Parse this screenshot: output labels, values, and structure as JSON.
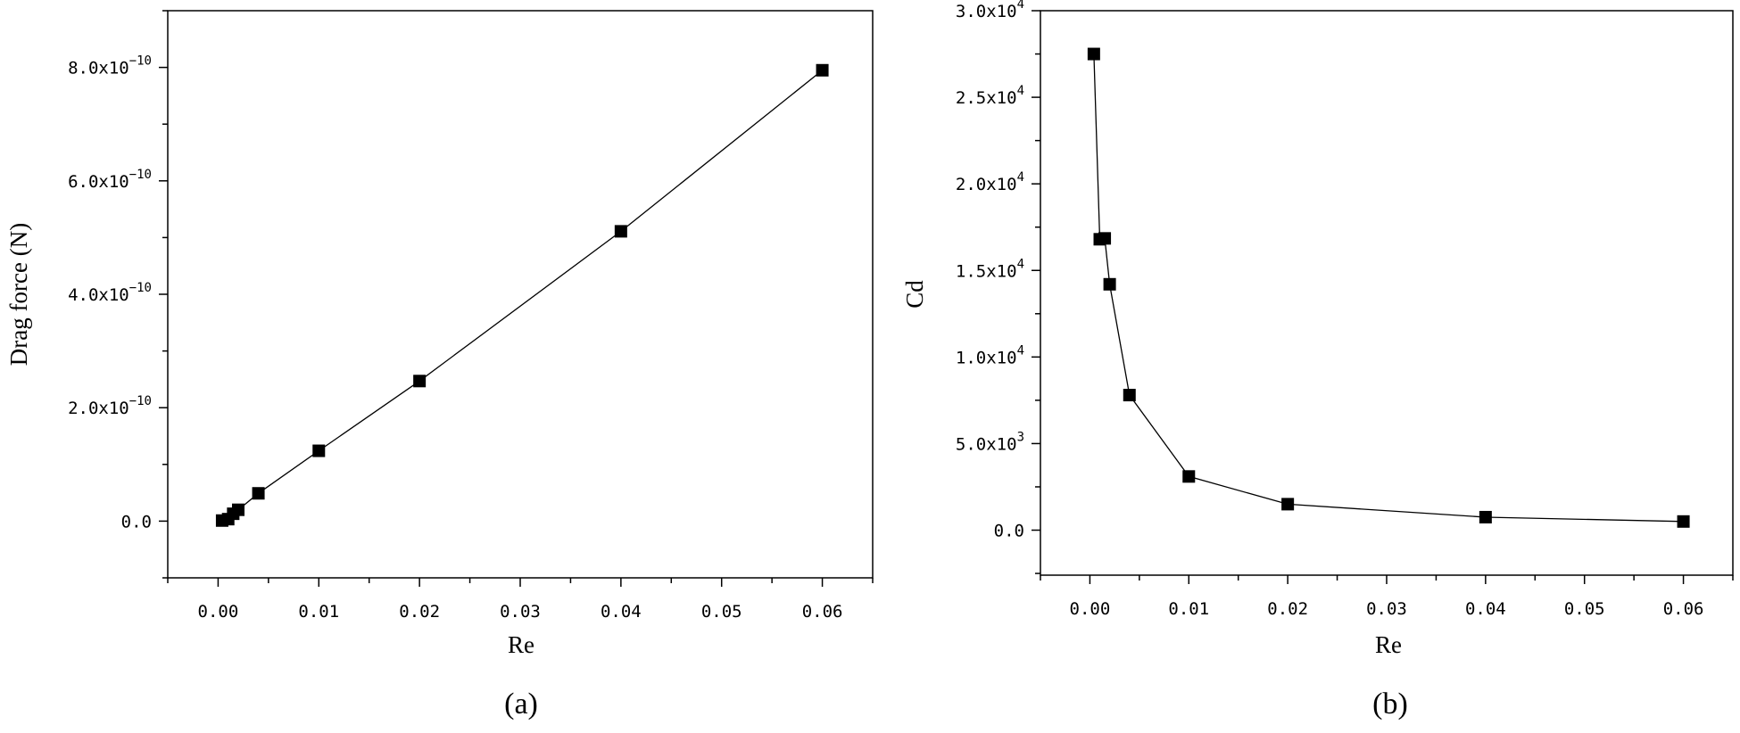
{
  "chart_data": [
    {
      "type": "line",
      "panel_label": "(a)",
      "xlabel": "Re",
      "ylabel": "Drag force (N)",
      "xlim": [
        -0.005,
        0.065
      ],
      "ylim": [
        -1e-10,
        9e-10
      ],
      "x_ticks": [
        0.0,
        0.01,
        0.02,
        0.03,
        0.04,
        0.05,
        0.06
      ],
      "x_tick_labels": [
        "0.00",
        "0.01",
        "0.02",
        "0.03",
        "0.04",
        "0.05",
        "0.06"
      ],
      "y_ticks": [
        0.0,
        2e-10,
        4e-10,
        6e-10,
        8e-10
      ],
      "y_tick_labels": [
        {
          "mantissa": "0.0",
          "exponent": ""
        },
        {
          "mantissa": "2.0x10",
          "exponent": "−10"
        },
        {
          "mantissa": "4.0x10",
          "exponent": "−10"
        },
        {
          "mantissa": "6.0x10",
          "exponent": "−10"
        },
        {
          "mantissa": "8.0x10",
          "exponent": "−10"
        }
      ],
      "marker": "square",
      "grid": false,
      "series": [
        {
          "x": [
            0.0004,
            0.001,
            0.0015,
            0.002,
            0.004,
            0.01,
            0.02,
            0.04,
            0.06
          ],
          "y": [
            1e-12,
            3.5e-12,
            1.3e-11,
            2e-11,
            4.9e-11,
            1.24e-10,
            2.47e-10,
            5.11e-10,
            7.95e-10
          ]
        }
      ]
    },
    {
      "type": "line",
      "panel_label": "(b)",
      "xlabel": "Re",
      "ylabel": "Cd",
      "xlim": [
        -0.005,
        0.065
      ],
      "ylim": [
        -2600,
        30000
      ],
      "x_ticks": [
        0.0,
        0.01,
        0.02,
        0.03,
        0.04,
        0.05,
        0.06
      ],
      "x_tick_labels": [
        "0.00",
        "0.01",
        "0.02",
        "0.03",
        "0.04",
        "0.05",
        "0.06"
      ],
      "y_ticks": [
        0,
        5000,
        10000,
        15000,
        20000,
        25000,
        30000
      ],
      "y_tick_labels": [
        {
          "mantissa": "0.0",
          "exponent": ""
        },
        {
          "mantissa": "5.0x10",
          "exponent": "3"
        },
        {
          "mantissa": "1.0x10",
          "exponent": "4"
        },
        {
          "mantissa": "1.5x10",
          "exponent": "4"
        },
        {
          "mantissa": "2.0x10",
          "exponent": "4"
        },
        {
          "mantissa": "2.5x10",
          "exponent": "4"
        },
        {
          "mantissa": "3.0x10",
          "exponent": "4"
        }
      ],
      "marker": "square",
      "grid": false,
      "series": [
        {
          "x": [
            0.0004,
            0.001,
            0.0015,
            0.002,
            0.004,
            0.01,
            0.02,
            0.04,
            0.06
          ],
          "y": [
            27500,
            16800,
            16850,
            14200,
            7800,
            3100,
            1500,
            750,
            500
          ]
        }
      ]
    }
  ]
}
